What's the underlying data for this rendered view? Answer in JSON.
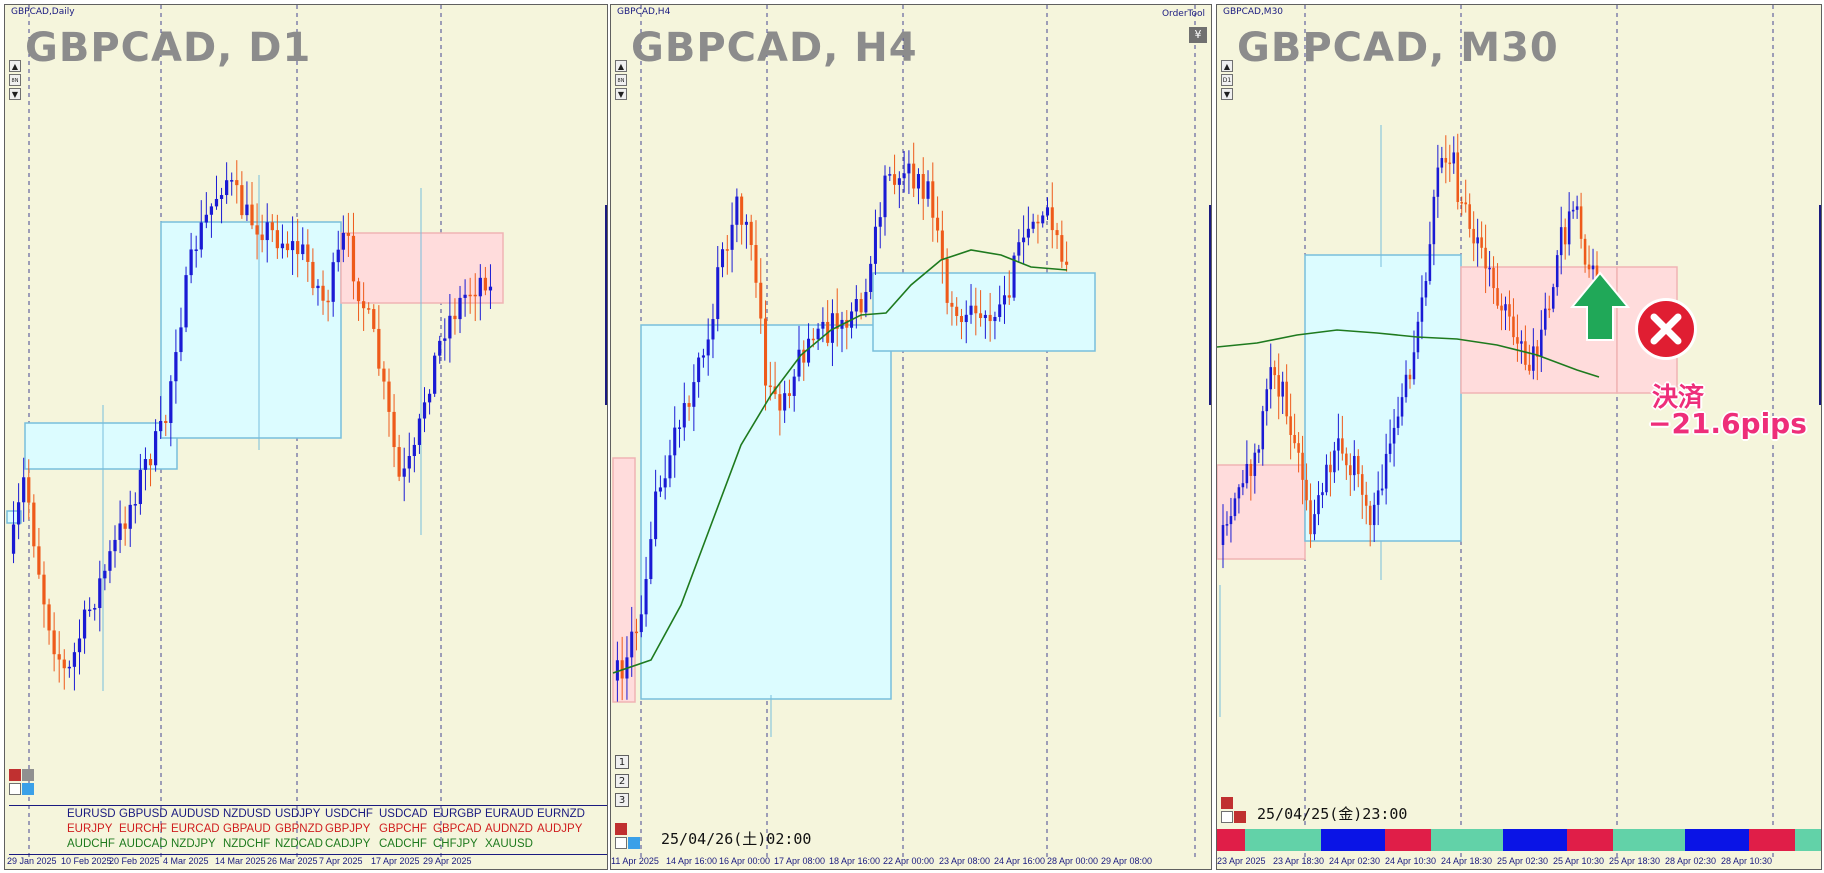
{
  "panels": [
    {
      "small_title": "GBPCAD,Daily",
      "big_title": "GBPCAD, D1",
      "side_buttons": [
        "▲",
        "8N",
        "▼"
      ],
      "x_labels": [
        "29 Jan 2025",
        "10 Feb 2025",
        "20 Feb 2025",
        "4 Mar 2025",
        "14 Mar 2025",
        "26 Mar 2025",
        "7 Apr 2025",
        "17 Apr 2025",
        "29 Apr 2025"
      ],
      "currency_pairs": {
        "row1": [
          "EURUSD",
          "GBPUSD",
          "AUDUSD",
          "NZDUSD",
          "USDJPY",
          "USDCHF",
          "USDCAD",
          "EURGBP",
          "EURAUD",
          "EURNZD"
        ],
        "row2": [
          "EURJPY",
          "EURCHF",
          "EURCAD",
          "GBPAUD",
          "GBPNZD",
          "GBPJPY",
          "GBPCHF",
          "GBPCAD",
          "AUDNZD",
          "AUDJPY"
        ],
        "row3": [
          "AUDCHF",
          "AUDCAD",
          "NZDJPY",
          "NZDCHF",
          "NZDCAD",
          "CADJPY",
          "CADCHF",
          "CHFJPY",
          "XAUUSD",
          ""
        ]
      }
    },
    {
      "small_title": "GBPCAD,H4",
      "big_title": "GBPCAD, H4",
      "order_tool": "OrderTool",
      "yen_icon": "¥",
      "side_buttons": [
        "▲",
        "8N",
        "▼"
      ],
      "number_buttons": [
        "1",
        "2",
        "3"
      ],
      "datetime": "25/04/26(土)02:00",
      "x_labels": [
        "11 Apr 2025",
        "14 Apr 16:00",
        "16 Apr 00:00",
        "17 Apr 08:00",
        "18 Apr 16:00",
        "22 Apr 00:00",
        "23 Apr 08:00",
        "24 Apr 16:00",
        "28 Apr 00:00",
        "29 Apr 08:00"
      ]
    },
    {
      "small_title": "GBPCAD,M30",
      "big_title": "GBPCAD, M30",
      "side_buttons": [
        "▲",
        "D1",
        "▼"
      ],
      "datetime": "25/04/25(金)23:00",
      "x_labels": [
        "23 Apr 2025",
        "23 Apr 18:30",
        "24 Apr 02:30",
        "24 Apr 10:30",
        "24 Apr 18:30",
        "25 Apr 02:30",
        "25 Apr 10:30",
        "25 Apr 18:30",
        "28 Apr 02:30",
        "28 Apr 10:30"
      ],
      "annotation": {
        "line1": "決済",
        "line2": "−21.6pips",
        "close_icon": "close-circle-icon",
        "arrow_icon": "arrow-up-icon"
      }
    }
  ],
  "colors": {
    "background": "#f5f5dc",
    "bull": "#1a1ad4",
    "bear": "#ee5a1a",
    "ma": "#1e7a1e",
    "box_blue": "#dcfcff",
    "box_pink": "#ffdcdc",
    "annotation_pink": "#ee2e7a",
    "close_red": "#e01e32",
    "arrow_green": "#20a858",
    "pair_row1": "#1a1a80",
    "pair_row2": "#d01e1e",
    "pair_row3": "#1e7a1e"
  }
}
